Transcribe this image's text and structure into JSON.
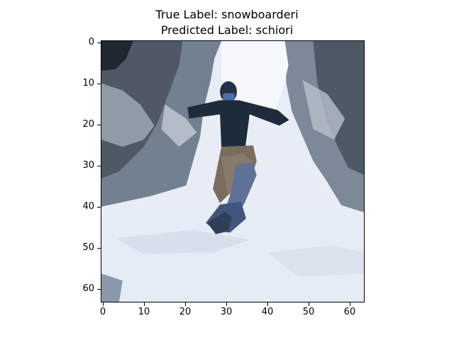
{
  "title": {
    "line1": "True Label: snowboarderi",
    "line2": "Predicted Label: schiori"
  },
  "axes": {
    "x_ticks": [
      "0",
      "10",
      "20",
      "30",
      "40",
      "50",
      "60"
    ],
    "y_ticks": [
      "0",
      "10",
      "20",
      "30",
      "40",
      "50",
      "60"
    ]
  },
  "image": {
    "description": "snowboarder-mid-air-over-snowy-forest",
    "colors": {
      "snow": "#e7ecf5",
      "tree_dark": "#48525e",
      "jacket": "#1e2b3b",
      "pants": "#7b6d5e",
      "board": "#42567d",
      "face": "#4c6fb1"
    }
  }
}
